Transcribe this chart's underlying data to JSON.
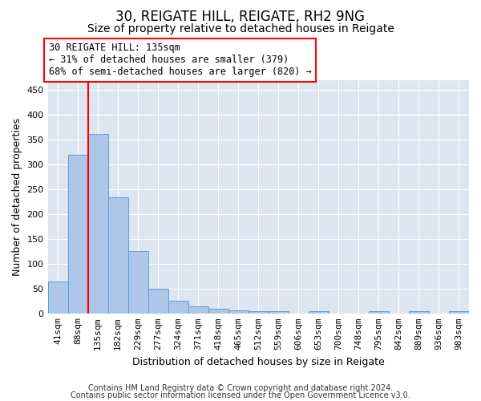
{
  "title1": "30, REIGATE HILL, REIGATE, RH2 9NG",
  "title2": "Size of property relative to detached houses in Reigate",
  "xlabel": "Distribution of detached houses by size in Reigate",
  "ylabel": "Number of detached properties",
  "categories": [
    "41sqm",
    "88sqm",
    "135sqm",
    "182sqm",
    "229sqm",
    "277sqm",
    "324sqm",
    "371sqm",
    "418sqm",
    "465sqm",
    "512sqm",
    "559sqm",
    "606sqm",
    "653sqm",
    "700sqm",
    "748sqm",
    "795sqm",
    "842sqm",
    "889sqm",
    "936sqm",
    "983sqm"
  ],
  "values": [
    65,
    320,
    362,
    233,
    126,
    50,
    26,
    15,
    10,
    6,
    4,
    4,
    0,
    4,
    0,
    0,
    4,
    0,
    4,
    0,
    4
  ],
  "bar_color": "#aec6e8",
  "bar_edge_color": "#5a9fd4",
  "highlight_index": 2,
  "red_line_index": 2,
  "annotation_text": "30 REIGATE HILL: 135sqm\n← 31% of detached houses are smaller (379)\n68% of semi-detached houses are larger (820) →",
  "annotation_box_color": "white",
  "annotation_box_edge": "red",
  "ylim": [
    0,
    470
  ],
  "yticks": [
    0,
    50,
    100,
    150,
    200,
    250,
    300,
    350,
    400,
    450
  ],
  "bg_color": "#dde6f0",
  "footer1": "Contains HM Land Registry data © Crown copyright and database right 2024.",
  "footer2": "Contains public sector information licensed under the Open Government Licence v3.0.",
  "title_fontsize": 12,
  "subtitle_fontsize": 10,
  "axis_label_fontsize": 9,
  "tick_fontsize": 8,
  "footer_fontsize": 7
}
